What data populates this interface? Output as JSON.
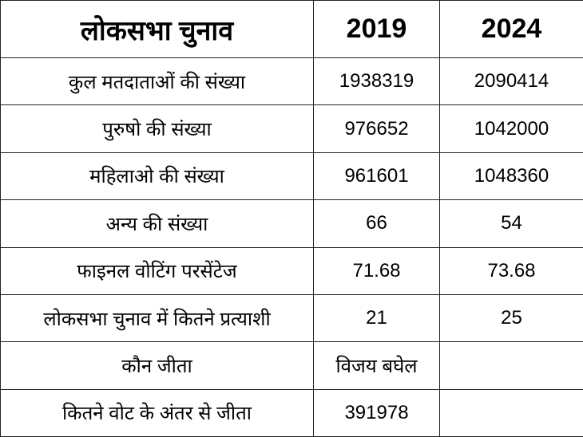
{
  "table": {
    "header": [
      "लोकसभा चुनाव",
      "2019",
      "2024"
    ],
    "rows": [
      [
        "कुल मतदाताओं की संख्या",
        "1938319",
        "2090414"
      ],
      [
        "पुरुषो की संख्या",
        "976652",
        "1042000"
      ],
      [
        "महिलाओ की संख्या",
        "961601",
        "1048360"
      ],
      [
        "अन्य की संख्या",
        "66",
        "54"
      ],
      [
        "फाइनल वोटिंग परसेंटेज",
        "71.68",
        "73.68"
      ],
      [
        "लोकसभा चुनाव में कितने प्रत्याशी",
        "21",
        "25"
      ],
      [
        "कौन जीता",
        "विजय बघेल"
      ],
      [
        "कितने वोट के अंतर से जीता",
        "391978"
      ]
    ]
  }
}
